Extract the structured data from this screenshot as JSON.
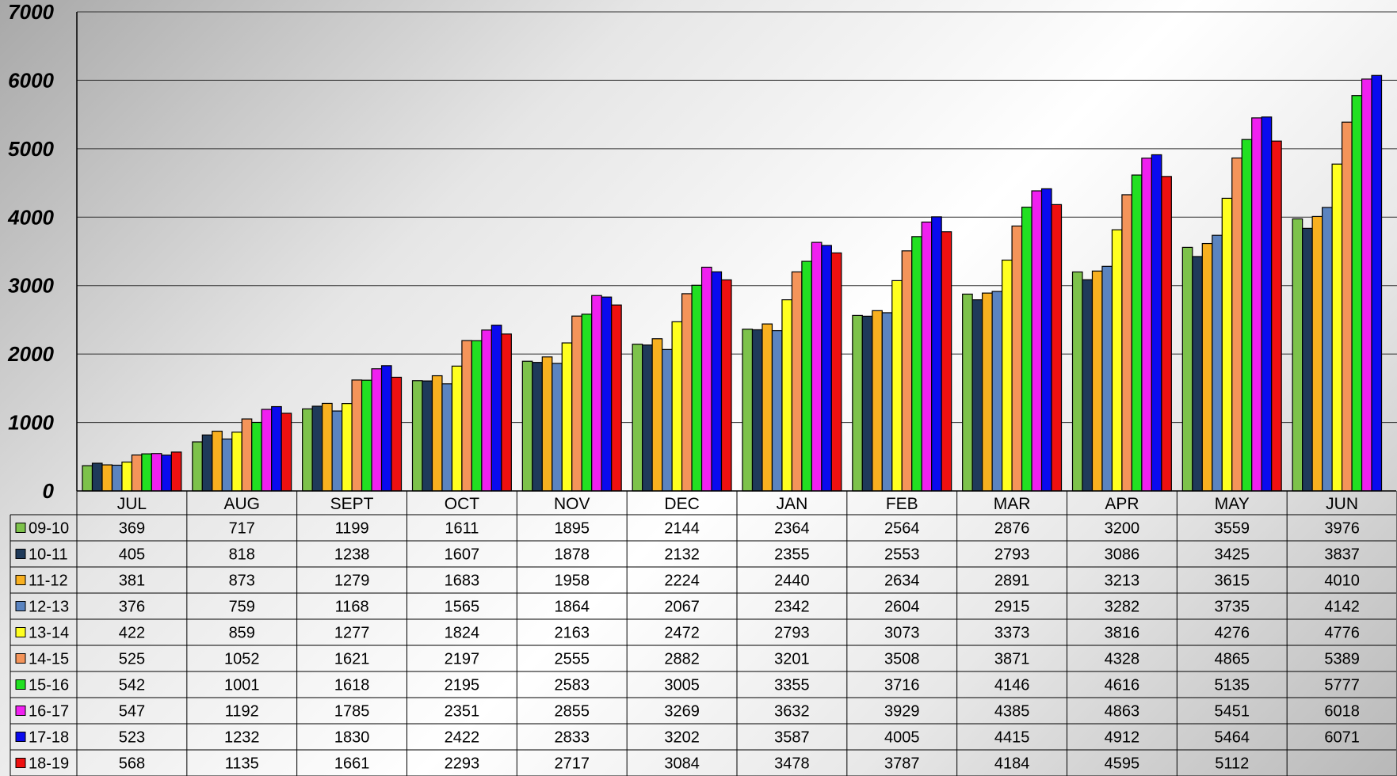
{
  "chart_data": {
    "type": "bar",
    "ylim": [
      0,
      7000
    ],
    "yticks": [
      0,
      1000,
      2000,
      3000,
      4000,
      5000,
      6000,
      7000
    ],
    "grid": true,
    "legend": "data-table-left",
    "categories": [
      "JUL",
      "AUG",
      "SEPT",
      "OCT",
      "NOV",
      "DEC",
      "JAN",
      "FEB",
      "MAR",
      "APR",
      "MAY",
      "JUN"
    ],
    "series": [
      {
        "name": "09-10",
        "color": "#7dc24b",
        "values": [
          369,
          717,
          1199,
          1611,
          1895,
          2144,
          2364,
          2564,
          2876,
          3200,
          3559,
          3976
        ]
      },
      {
        "name": "10-11",
        "color": "#1f3a5a",
        "values": [
          405,
          818,
          1238,
          1607,
          1878,
          2132,
          2355,
          2553,
          2793,
          3086,
          3425,
          3837
        ]
      },
      {
        "name": "11-12",
        "color": "#f8b020",
        "values": [
          381,
          873,
          1279,
          1683,
          1958,
          2224,
          2440,
          2634,
          2891,
          3213,
          3615,
          4010
        ]
      },
      {
        "name": "12-13",
        "color": "#5b84c0",
        "values": [
          376,
          759,
          1168,
          1565,
          1864,
          2067,
          2342,
          2604,
          2915,
          3282,
          3735,
          4142
        ]
      },
      {
        "name": "13-14",
        "color": "#ffff20",
        "values": [
          422,
          859,
          1277,
          1824,
          2163,
          2472,
          2793,
          3073,
          3373,
          3816,
          4276,
          4776
        ]
      },
      {
        "name": "14-15",
        "color": "#f4945a",
        "values": [
          525,
          1052,
          1621,
          2197,
          2555,
          2882,
          3201,
          3508,
          3871,
          4328,
          4865,
          5389
        ]
      },
      {
        "name": "15-16",
        "color": "#22e022",
        "values": [
          542,
          1001,
          1618,
          2195,
          2583,
          3005,
          3355,
          3716,
          4146,
          4616,
          5135,
          5777
        ]
      },
      {
        "name": "16-17",
        "color": "#f020f0",
        "values": [
          547,
          1192,
          1785,
          2351,
          2855,
          3269,
          3632,
          3929,
          4385,
          4863,
          5451,
          6018
        ]
      },
      {
        "name": "17-18",
        "color": "#0a0aee",
        "values": [
          523,
          1232,
          1830,
          2422,
          2833,
          3202,
          3587,
          4005,
          4415,
          4912,
          5464,
          6071
        ]
      },
      {
        "name": "18-19",
        "color": "#ee1010",
        "values": [
          568,
          1135,
          1661,
          2293,
          2717,
          3084,
          3478,
          3787,
          4184,
          4595,
          5112,
          null
        ]
      }
    ]
  }
}
